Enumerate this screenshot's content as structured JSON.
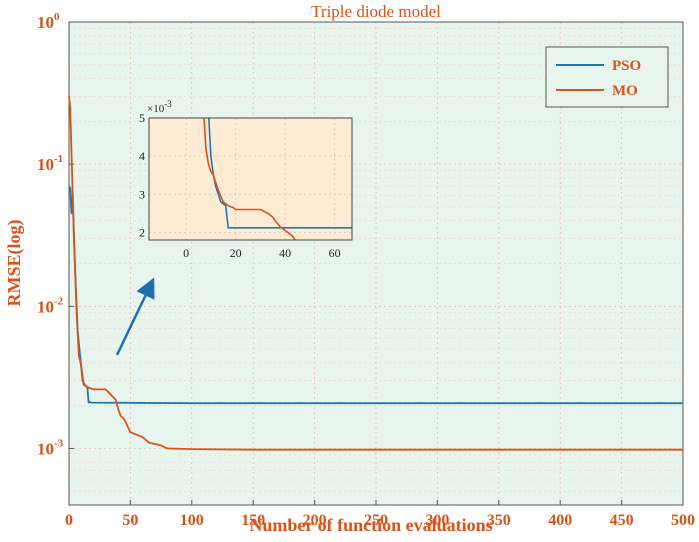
{
  "colors": {
    "pso": "#1f77b4",
    "mo": "#d95319",
    "axis_text": "#d95319",
    "plot_bg": "#e8f5ee",
    "inset_bg": "#fdebd3",
    "arrow": "#1f6fb0"
  },
  "chart_data": {
    "type": "line",
    "title": "Triple diode model",
    "xlabel": "Number of function evaluations",
    "ylabel": "RMSE(log)",
    "xlim": [
      0,
      500
    ],
    "ylim": [
      0.0004,
      1
    ],
    "yscale": "log",
    "grid": true,
    "legend_position": "top-right",
    "x_ticks": [
      "0",
      "50",
      "100",
      "150",
      "200",
      "250",
      "300",
      "350",
      "400",
      "450",
      "500"
    ],
    "y_ticks": [
      {
        "base": "10",
        "exp": "0"
      },
      {
        "base": "10",
        "exp": "-1"
      },
      {
        "base": "10",
        "exp": "-2"
      },
      {
        "base": "10",
        "exp": "-3"
      }
    ],
    "series": [
      {
        "name": "PSO",
        "color": "#1f77b4",
        "x": [
          0,
          1,
          2,
          3,
          5,
          7,
          9,
          11,
          13,
          15,
          16,
          17,
          18,
          100,
          500
        ],
        "y": [
          0.07,
          0.068,
          0.045,
          0.06,
          0.018,
          0.0068,
          0.0045,
          0.003,
          0.0028,
          0.0027,
          0.0021,
          0.00212,
          0.0021,
          0.00208,
          0.00208
        ]
      },
      {
        "name": "MO",
        "color": "#d95319",
        "x": [
          0,
          1,
          2,
          3,
          4,
          5,
          6,
          7,
          8,
          10,
          12,
          15,
          20,
          30,
          38,
          40,
          42,
          45,
          50,
          60,
          65,
          75,
          80,
          100,
          150,
          200,
          500
        ],
        "y": [
          0.3,
          0.25,
          0.12,
          0.06,
          0.03,
          0.018,
          0.01,
          0.0067,
          0.0045,
          0.0038,
          0.0028,
          0.0027,
          0.0026,
          0.0026,
          0.0022,
          0.0019,
          0.0017,
          0.0016,
          0.0013,
          0.0012,
          0.0011,
          0.00105,
          0.001,
          0.00099,
          0.00098,
          0.00098,
          0.00098
        ]
      }
    ],
    "inset": {
      "xlim": [
        -15,
        67
      ],
      "ylim": [
        1.8,
        5
      ],
      "multiplier": "×10",
      "multiplier_exp": "-3",
      "x_ticks": [
        "0",
        "20",
        "40",
        "60"
      ],
      "y_ticks": [
        "2",
        "3",
        "4",
        "5"
      ],
      "series": [
        {
          "name": "PSO",
          "x": [
            9,
            10,
            11,
            12,
            13,
            14,
            15,
            16,
            17,
            18,
            67
          ],
          "y": [
            5.2,
            4.0,
            3.5,
            3.2,
            3.0,
            2.8,
            2.75,
            2.7,
            2.12,
            2.12,
            2.12
          ]
        },
        {
          "name": "MO",
          "x": [
            7,
            8,
            9,
            10,
            11,
            12,
            13,
            15,
            17,
            19,
            20,
            22,
            30,
            33,
            35,
            36,
            38,
            40,
            42,
            43,
            44
          ],
          "y": [
            5.2,
            4.2,
            3.8,
            3.6,
            3.5,
            3.3,
            3.1,
            2.8,
            2.7,
            2.65,
            2.6,
            2.6,
            2.6,
            2.5,
            2.4,
            2.3,
            2.15,
            2.05,
            1.95,
            1.9,
            1.8
          ]
        }
      ]
    }
  }
}
